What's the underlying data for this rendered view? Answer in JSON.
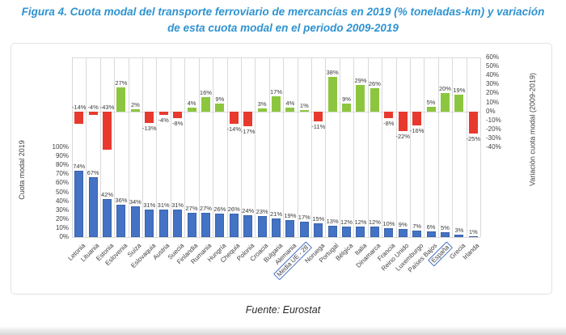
{
  "figure": {
    "title_line1": "Figura 4. Cuota modal del transporte ferroviario de mercancías en 2019 (% toneladas-km) y variación",
    "title_line2": "de esta cuota modal en el periodo 2009-2019",
    "source": "Fuente: Eurostat"
  },
  "colors": {
    "title": "#2E93D1",
    "share_bar": "#4472C4",
    "share_bar_border": "#2F5597",
    "variation_positive": "#8CC63F",
    "variation_negative": "#E8392E",
    "grid": "#D9D9D9",
    "text": "#404040",
    "highlight_box": "#4472C4"
  },
  "chart_data": {
    "type": "bar",
    "title": "Cuota modal del transporte ferroviario de mercancías en 2019 (% toneladas-km) y variación de esta cuota modal en el periodo 2009-2019",
    "categories": [
      "Letonia",
      "Lituania",
      "Estonia",
      "Eslovenia",
      "Suiza",
      "Eslovaquia",
      "Austria",
      "Suecia",
      "Finlandia",
      "Rumania",
      "Hungría",
      "Chequia",
      "Polonia",
      "Croacia",
      "Bulgaria",
      "Alemania",
      "Media UE - 28",
      "Noruega",
      "Portugal",
      "Bélgica",
      "Italia",
      "Dinamarca",
      "Francia",
      "Reino Unido",
      "Luxemburgo",
      "Países Bajos",
      "España",
      "Grecia",
      "Irlanda"
    ],
    "series": [
      {
        "name": "Cuota modal 2019",
        "axis": "left",
        "unit": "%",
        "values": [
          74,
          67,
          42,
          36,
          34,
          31,
          31,
          31,
          27,
          27,
          26,
          26,
          24,
          23,
          21,
          19,
          17,
          15,
          13,
          12,
          12,
          12,
          10,
          9,
          7,
          6,
          5,
          3,
          1
        ]
      },
      {
        "name": "Variación cuota modal (2009-2019)",
        "axis": "right",
        "unit": "%",
        "values": [
          -14,
          -4,
          -43,
          27,
          2,
          -13,
          -4,
          -8,
          4,
          16,
          9,
          -14,
          -17,
          3,
          17,
          4,
          1,
          -11,
          38,
          9,
          29,
          26,
          -8,
          -22,
          -16,
          5,
          20,
          19,
          -25
        ]
      }
    ],
    "left_axis": {
      "label": "Cuota modal 2019",
      "min": 0,
      "max": 100,
      "step": 10,
      "unit": "%"
    },
    "right_axis": {
      "label": "Variación cuota modal (2009-2019)",
      "min": -40,
      "max": 60,
      "step": 10,
      "unit": "%"
    },
    "highlighted_categories": [
      "Media UE - 28",
      "España"
    ],
    "negative_labels_above_zero": [
      "Letonia",
      "Lituania",
      "Estonia"
    ],
    "legend": "none",
    "grid": "vertical-column-separators"
  }
}
